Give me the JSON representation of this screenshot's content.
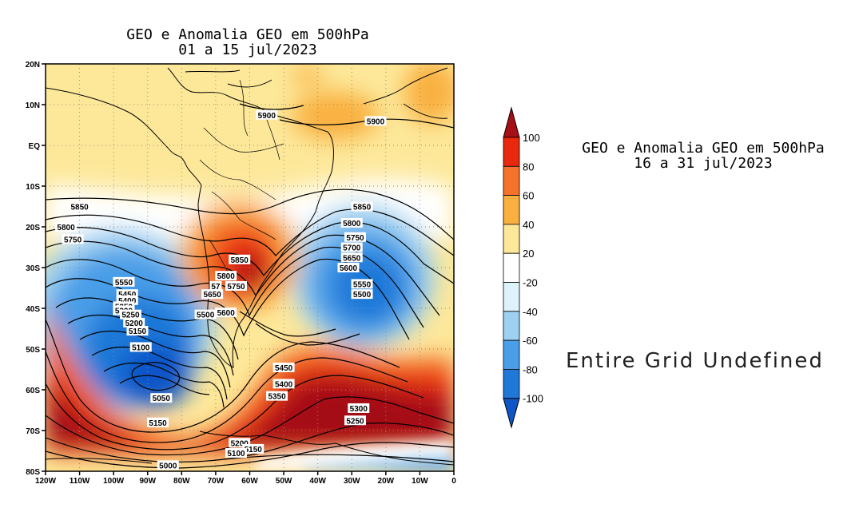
{
  "left_map": {
    "title_line1": "GEO e Anomalia GEO em 500hPa",
    "title_line2": "01 a 15 jul/2023",
    "lat_labels": [
      "20N",
      "10N",
      "EQ",
      "10S",
      "20S",
      "30S",
      "40S",
      "50S",
      "60S",
      "70S",
      "80S"
    ],
    "lon_labels": [
      "120W",
      "110W",
      "100W",
      "90W",
      "80W",
      "70W",
      "60W",
      "50W",
      "40W",
      "30W",
      "20W",
      "10W",
      "0"
    ],
    "contour_labels": [
      {
        "text": "5900",
        "lon": -55,
        "lat": 7.5
      },
      {
        "text": "5900",
        "lon": -23,
        "lat": 6
      },
      {
        "text": "5850",
        "lon": -110,
        "lat": -15
      },
      {
        "text": "5850",
        "lon": -27,
        "lat": -15
      },
      {
        "text": "5800",
        "lon": -114,
        "lat": -20
      },
      {
        "text": "5800",
        "lon": -30,
        "lat": -19
      },
      {
        "text": "5750",
        "lon": -112,
        "lat": -23
      },
      {
        "text": "5750",
        "lon": -29,
        "lat": -22.5
      },
      {
        "text": "5700",
        "lon": -30,
        "lat": -25
      },
      {
        "text": "5650",
        "lon": -30,
        "lat": -27.5
      },
      {
        "text": "5600",
        "lon": -31,
        "lat": -30
      },
      {
        "text": "5850",
        "lon": -63,
        "lat": -28
      },
      {
        "text": "5800",
        "lon": -67,
        "lat": -32
      },
      {
        "text": "57",
        "lon": -70,
        "lat": -34.5
      },
      {
        "text": "5750",
        "lon": -64,
        "lat": -34.5
      },
      {
        "text": "5650",
        "lon": -71,
        "lat": -36.5
      },
      {
        "text": "5600",
        "lon": -67,
        "lat": -41
      },
      {
        "text": "5500",
        "lon": -73,
        "lat": -41.5
      },
      {
        "text": "5550",
        "lon": -97,
        "lat": -33.5
      },
      {
        "text": "5550",
        "lon": -27,
        "lat": -34
      },
      {
        "text": "5500",
        "lon": -27,
        "lat": -36.5
      },
      {
        "text": "5450",
        "lon": -96,
        "lat": -36.5
      },
      {
        "text": "5400",
        "lon": -96,
        "lat": -38
      },
      {
        "text": "5350",
        "lon": -97,
        "lat": -39.5
      },
      {
        "text": "5300",
        "lon": -97,
        "lat": -40.5
      },
      {
        "text": "5250",
        "lon": -95,
        "lat": -41.5
      },
      {
        "text": "5200",
        "lon": -94,
        "lat": -43.5
      },
      {
        "text": "5150",
        "lon": -93,
        "lat": -45.5
      },
      {
        "text": "5100",
        "lon": -92,
        "lat": -49.5
      },
      {
        "text": "5050",
        "lon": -86,
        "lat": -62
      },
      {
        "text": "5150",
        "lon": -87,
        "lat": -68
      },
      {
        "text": "5450",
        "lon": -50,
        "lat": -54.5
      },
      {
        "text": "5400",
        "lon": -50,
        "lat": -58.5
      },
      {
        "text": "5350",
        "lon": -52,
        "lat": -61.5
      },
      {
        "text": "5300",
        "lon": -28,
        "lat": -64.5
      },
      {
        "text": "5250",
        "lon": -29,
        "lat": -67.5
      },
      {
        "text": "5200",
        "lon": -63,
        "lat": -73
      },
      {
        "text": "5150",
        "lon": -59,
        "lat": -74.5
      },
      {
        "text": "5100",
        "lon": -64,
        "lat": -75.5
      },
      {
        "text": "5000",
        "lon": -84,
        "lat": -78.5
      }
    ]
  },
  "colorbar": {
    "labels": [
      "100",
      "80",
      "60",
      "40",
      "20",
      "-20",
      "-40",
      "-60",
      "-80",
      "-100"
    ],
    "colors": [
      "#a50f15",
      "#e8290e",
      "#f5722a",
      "#f9b040",
      "#fde89a",
      "#ffffff",
      "#def2fb",
      "#9ed1f1",
      "#4a9ee8",
      "#1f78d8",
      "#0e55c8"
    ]
  },
  "right_map": {
    "title_line1": "GEO e Anomalia GEO em 500hPa",
    "title_line2": "16 a 31 jul/2023",
    "message": "Entire Grid Undefined"
  }
}
